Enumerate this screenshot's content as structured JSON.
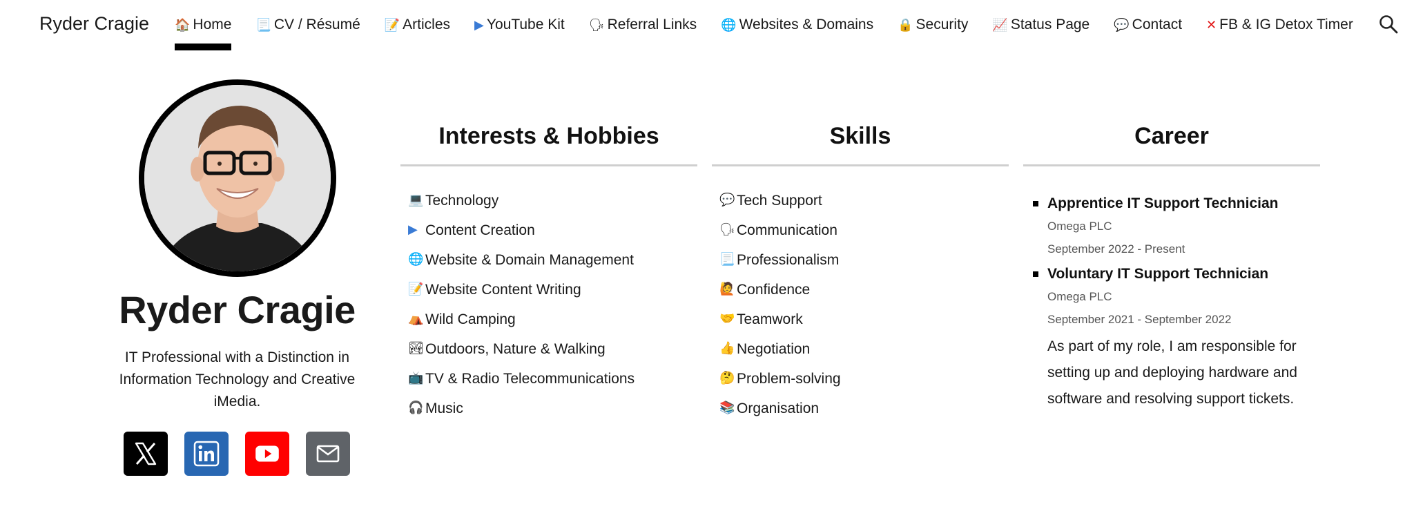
{
  "header": {
    "site_title": "Ryder Cragie",
    "nav": [
      {
        "icon": "🏠",
        "icon_name": "house-icon",
        "label": "Home",
        "active": true
      },
      {
        "icon": "📃",
        "icon_name": "page-icon",
        "label": "CV / Résumé"
      },
      {
        "icon": "📝",
        "icon_name": "memo-icon",
        "label": "Articles"
      },
      {
        "icon": "▶",
        "icon_name": "play-button-icon",
        "label": "YouTube Kit"
      },
      {
        "icon": "🗣",
        "icon_name": "speaking-head-icon",
        "label": "Referral Links"
      },
      {
        "icon": "🌐",
        "icon_name": "globe-icon",
        "label": "Websites & Domains"
      },
      {
        "icon": "🔒",
        "icon_name": "lock-icon",
        "label": "Security"
      },
      {
        "icon": "📈",
        "icon_name": "chart-increasing-icon",
        "label": "Status Page"
      },
      {
        "icon": "💬",
        "icon_name": "speech-balloon-icon",
        "label": "Contact"
      },
      {
        "icon": "✕",
        "icon_name": "cross-mark-icon",
        "label": "FB & IG Detox Timer"
      }
    ]
  },
  "profile": {
    "name": "Ryder Cragie",
    "tagline": "IT Professional with a Distinction in Information Technology and Creative iMedia."
  },
  "interests": {
    "title": "Interests & Hobbies",
    "items": [
      {
        "icon": "💻",
        "label": "Technology"
      },
      {
        "icon": "▶",
        "label": "Content Creation"
      },
      {
        "icon": "🌐",
        "label": "Website & Domain Management"
      },
      {
        "icon": "📝",
        "label": "Website Content Writing"
      },
      {
        "icon": "⛺",
        "label": "Wild Camping"
      },
      {
        "icon": "🏞",
        "label": "Outdoors, Nature & Walking"
      },
      {
        "icon": "📺",
        "label": "TV & Radio Telecommunications"
      },
      {
        "icon": "🎧",
        "label": "Music"
      }
    ]
  },
  "skills": {
    "title": "Skills",
    "items": [
      {
        "icon": "💬",
        "label": "Tech Support"
      },
      {
        "icon": "🗣",
        "label": "Communication"
      },
      {
        "icon": "📃",
        "label": "Professionalism"
      },
      {
        "icon": "🙋",
        "label": "Confidence"
      },
      {
        "icon": "🤝",
        "label": "Teamwork"
      },
      {
        "icon": "👍",
        "label": "Negotiation"
      },
      {
        "icon": "🤔",
        "label": "Problem-solving"
      },
      {
        "icon": "📚",
        "label": "Organisation"
      }
    ]
  },
  "career": {
    "title": "Career",
    "jobs": [
      {
        "title": "Apprentice IT Support Technician",
        "org": "Omega PLC",
        "dates": "September 2022 - Present"
      },
      {
        "title": "Voluntary IT Support Technician",
        "org": "Omega PLC",
        "dates": "September 2021 - September 2022",
        "description": "As part of my role, I am responsible for setting up and deploying hardware and software and resolving support tickets."
      }
    ]
  },
  "colors": {
    "x": "#000000",
    "linkedin": "#2867b2",
    "youtube": "#ff0000",
    "email": "#5f6368"
  }
}
